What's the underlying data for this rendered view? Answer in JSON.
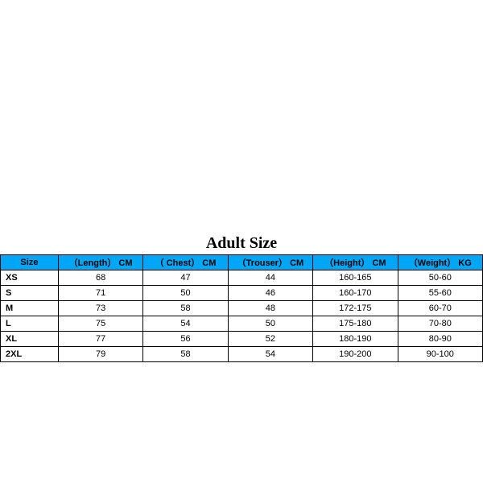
{
  "size_chart": {
    "title": "Adult Size",
    "header_bg": "#01a6f6",
    "border_color": "#000000",
    "text_color": "#000000",
    "title_fontsize": 20,
    "header_fontsize": 11,
    "cell_fontsize": 11,
    "columns": [
      {
        "label": "Size"
      },
      {
        "label": "（Length） CM"
      },
      {
        "label": "（ Chest） CM"
      },
      {
        "label": "（Trouser） CM"
      },
      {
        "label": "（Height） CM"
      },
      {
        "label": "（Weight） KG"
      }
    ],
    "rows": [
      {
        "size": "XS",
        "length": "68",
        "chest": "47",
        "trouser": "44",
        "height": "160-165",
        "weight": "50-60"
      },
      {
        "size": "S",
        "length": "71",
        "chest": "50",
        "trouser": "46",
        "height": "160-170",
        "weight": "55-60"
      },
      {
        "size": "M",
        "length": "73",
        "chest": "58",
        "trouser": "48",
        "height": "172-175",
        "weight": "60-70"
      },
      {
        "size": "L",
        "length": "75",
        "chest": "54",
        "trouser": "50",
        "height": "175-180",
        "weight": "70-80"
      },
      {
        "size": "XL",
        "length": "77",
        "chest": "56",
        "trouser": "52",
        "height": "180-190",
        "weight": "80-90"
      },
      {
        "size": "2XL",
        "length": "79",
        "chest": "58",
        "trouser": "54",
        "height": "190-200",
        "weight": "90-100"
      }
    ]
  }
}
